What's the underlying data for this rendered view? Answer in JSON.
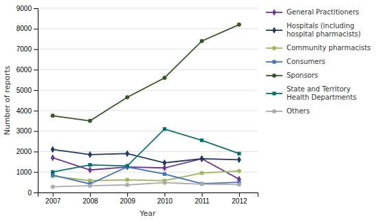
{
  "chart_data": {
    "type": "line",
    "xlabel": "Year",
    "ylabel": "Number of reports",
    "x": [
      2007,
      2008,
      2009,
      2010,
      2011,
      2012
    ],
    "xlim": [
      2006.6,
      2012.5
    ],
    "xticks": [
      2007,
      2008,
      2009,
      2010,
      2011,
      2012
    ],
    "ylim": [
      0,
      9000
    ],
    "yticks": [
      0,
      1000,
      2000,
      3000,
      4000,
      5000,
      6000,
      7000,
      8000,
      9000
    ],
    "grid": true,
    "legend": "right",
    "series": [
      {
        "name": "General Practitioners",
        "color": "#7030A0",
        "marker": "diamond",
        "values": [
          1700,
          1100,
          1250,
          1200,
          1650,
          650
        ]
      },
      {
        "name": "Hospitals (including\nhospital pharmacists)",
        "color": "#1F3864",
        "marker": "diamond",
        "values": [
          2100,
          1850,
          1900,
          1450,
          1650,
          1600
        ]
      },
      {
        "name": "Community pharmacists",
        "color": "#9BBB59",
        "marker": "circle",
        "values": [
          800,
          580,
          620,
          580,
          950,
          1050
        ]
      },
      {
        "name": "Consumers",
        "color": "#4472C4",
        "marker": "square",
        "values": [
          850,
          420,
          1250,
          900,
          430,
          500
        ]
      },
      {
        "name": "Sponsors",
        "color": "#375623",
        "marker": "circle",
        "values": [
          3750,
          3500,
          4650,
          5600,
          7400,
          8200
        ]
      },
      {
        "name": "State and Territory\nHealth Departments",
        "color": "#00736A",
        "marker": "square",
        "values": [
          1000,
          1350,
          1300,
          3100,
          2550,
          1900
        ]
      },
      {
        "name": "Others",
        "color": "#AEAAAA",
        "marker": "circle",
        "values": [
          280,
          330,
          370,
          480,
          410,
          390
        ]
      }
    ]
  }
}
